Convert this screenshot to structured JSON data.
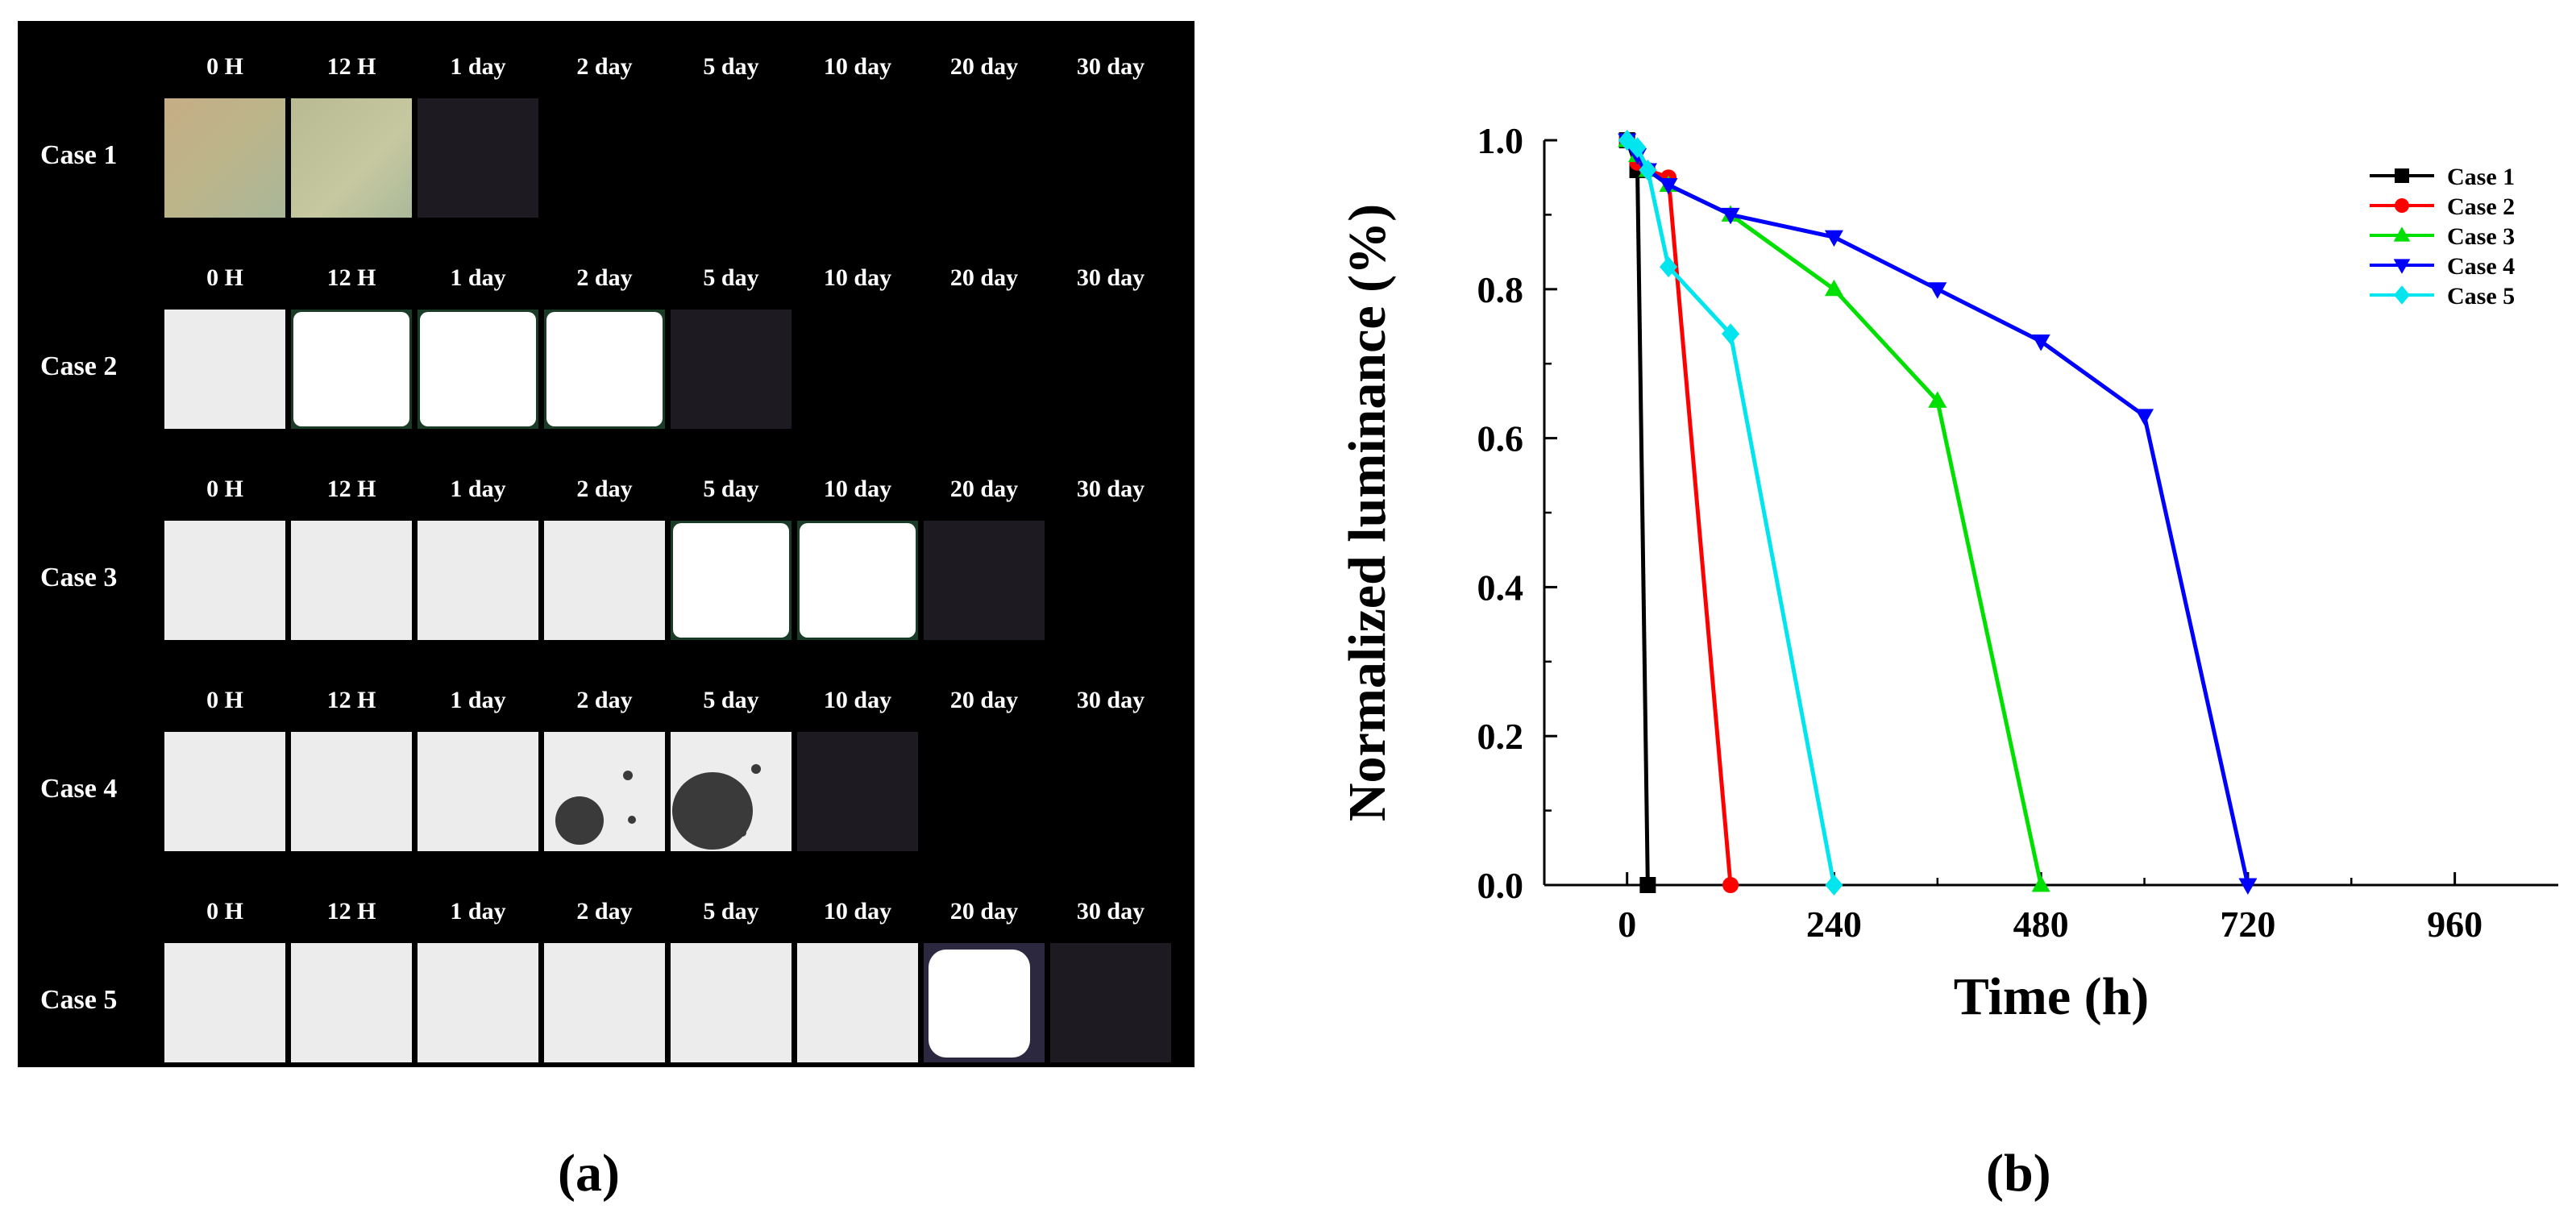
{
  "figure": {
    "panel_a_caption": "(a)",
    "panel_b_caption": "(b)"
  },
  "photo_grid": {
    "rows": [
      {
        "label": "Case 1",
        "columns": [
          "0 H",
          "12 H",
          "1 day",
          "2 day",
          "5 day",
          "10 day",
          "20 day",
          "30 day"
        ],
        "tiles": [
          "tan",
          "tan",
          "dark",
          "none",
          "none",
          "none",
          "none",
          "none"
        ]
      },
      {
        "label": "Case 2",
        "columns": [
          "0 H",
          "12 H",
          "1 day",
          "2 day",
          "5 day",
          "10 day",
          "20 day",
          "30 day"
        ],
        "tiles": [
          "grey",
          "white",
          "white",
          "white",
          "dark",
          "none",
          "none",
          "none"
        ]
      },
      {
        "label": "Case 3",
        "columns": [
          "0 H",
          "12 H",
          "1 day",
          "2 day",
          "5 day",
          "10 day",
          "20 day",
          "30 day"
        ],
        "tiles": [
          "grey",
          "grey",
          "grey",
          "grey",
          "white",
          "white",
          "dark",
          "none"
        ]
      },
      {
        "label": "Case 4",
        "columns": [
          "0 H",
          "12 H",
          "1 day",
          "2 day",
          "5 day",
          "10 day",
          "20 day",
          "30 day"
        ],
        "tiles": [
          "grey",
          "grey",
          "grey",
          "spots",
          "spots",
          "dark",
          "none",
          "none"
        ]
      },
      {
        "label": "Case 5",
        "columns": [
          "0 H",
          "12 H",
          "1 day",
          "2 day",
          "5 day",
          "10 day",
          "20 day",
          "30 day"
        ],
        "tiles": [
          "grey",
          "grey",
          "grey",
          "grey",
          "grey",
          "grey",
          "bright",
          "dark"
        ]
      }
    ]
  },
  "chart_data": {
    "type": "line",
    "xlabel": "Time (h)",
    "ylabel": "Normalized luminance (%)",
    "xlim": [
      -96,
      1080
    ],
    "ylim": [
      0,
      1.0
    ],
    "x_ticks": [
      0,
      240,
      480,
      720,
      960
    ],
    "y_ticks": [
      0.0,
      0.2,
      0.4,
      0.6,
      0.8,
      1.0
    ],
    "y_tick_labels": [
      "0.0",
      "0.2",
      "0.4",
      "0.6",
      "0.8",
      "1.0"
    ],
    "legend_position": "top-right",
    "series": [
      {
        "name": "Case 1",
        "color": "#000000",
        "marker": "square",
        "points": [
          [
            0,
            1.0
          ],
          [
            12,
            0.96
          ],
          [
            24,
            0.0
          ]
        ]
      },
      {
        "name": "Case 2",
        "color": "#ff0000",
        "marker": "circle",
        "points": [
          [
            0,
            1.0
          ],
          [
            12,
            0.97
          ],
          [
            24,
            0.96
          ],
          [
            48,
            0.95
          ],
          [
            120,
            0.0
          ]
        ]
      },
      {
        "name": "Case 3",
        "color": "#00e000",
        "marker": "triangle-up",
        "points": [
          [
            0,
            1.0
          ],
          [
            12,
            0.98
          ],
          [
            24,
            0.96
          ],
          [
            48,
            0.94
          ],
          [
            120,
            0.9
          ],
          [
            240,
            0.8
          ],
          [
            360,
            0.65
          ],
          [
            480,
            0.0
          ]
        ]
      },
      {
        "name": "Case 4",
        "color": "#0000ff",
        "marker": "triangle-down",
        "points": [
          [
            0,
            1.0
          ],
          [
            12,
            0.98
          ],
          [
            24,
            0.96
          ],
          [
            48,
            0.94
          ],
          [
            120,
            0.9
          ],
          [
            240,
            0.87
          ],
          [
            360,
            0.8
          ],
          [
            480,
            0.73
          ],
          [
            600,
            0.63
          ],
          [
            720,
            0.0
          ]
        ]
      },
      {
        "name": "Case 5",
        "color": "#00e5ee",
        "marker": "diamond",
        "points": [
          [
            0,
            1.0
          ],
          [
            12,
            0.99
          ],
          [
            24,
            0.96
          ],
          [
            48,
            0.83
          ],
          [
            120,
            0.74
          ],
          [
            240,
            0.0
          ]
        ]
      }
    ]
  }
}
